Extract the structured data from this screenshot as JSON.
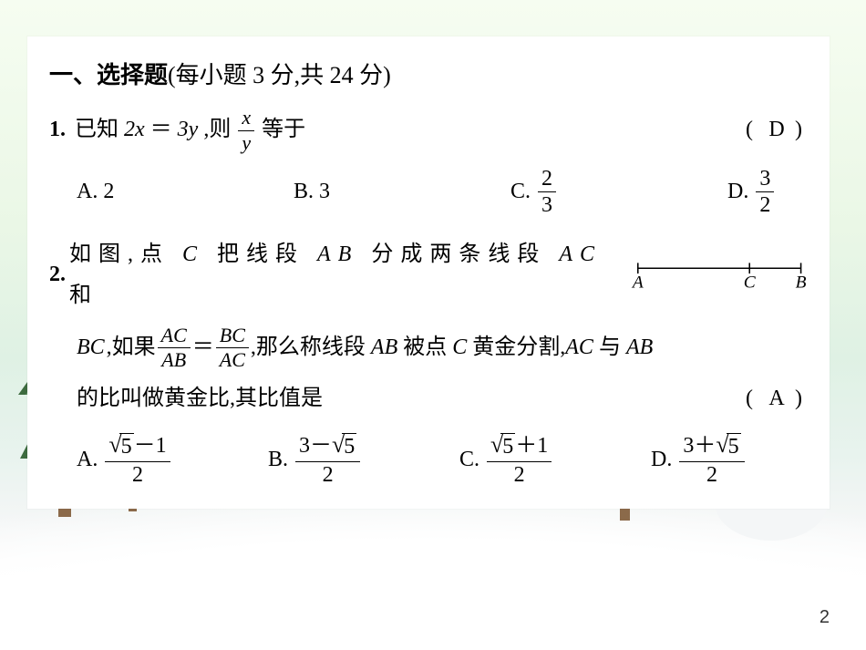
{
  "page": {
    "number": "2",
    "bg": {
      "sky_top": "#f6fdf1",
      "sky_mid": "#e2f3e6",
      "ground": "#ffffff"
    }
  },
  "trees": {
    "tree_green": "#3d6b3f",
    "tree_light": "#72a377",
    "tree_brown": "#8b6a4a",
    "snow": "#ffffff",
    "star": "#e0a64b"
  },
  "snowman": {
    "body": "#fafafa",
    "shadow": "#e7eef1",
    "scarf": "#d98b74",
    "nose": "#e0934a",
    "button": "#96785e",
    "stick": "#9f8060"
  },
  "heading": {
    "label": "一、选择题",
    "paren": "(每小题 3 分,共 24 分)"
  },
  "q1": {
    "num": "1.",
    "pre": "已知 ",
    "expr_lhs": "2x",
    "expr_eq": "＝",
    "expr_rhs": "3y",
    "post1": ",则",
    "frac_num": "x",
    "frac_den": "y",
    "post2": "等于",
    "answer": "D",
    "opts": {
      "A": {
        "label": "A.",
        "val": "2"
      },
      "B": {
        "label": "B.",
        "val": "3"
      },
      "C": {
        "label": "C.",
        "num": "2",
        "den": "3"
      },
      "D": {
        "label": "D.",
        "num": "3",
        "den": "2"
      }
    }
  },
  "q2": {
    "num": "2.",
    "line1_text": "如图,点 C 把线段 AB 分成两条线段 AC 和",
    "diagram": {
      "A": "A",
      "C": "C",
      "B": "B"
    },
    "line2_pre": "BC,如果",
    "frac1": {
      "num": "AC",
      "den": "AB"
    },
    "eq": "＝",
    "frac2": {
      "num": "BC",
      "den": "AC"
    },
    "line2_post": ",那么称线段 AB 被点 C 黄金分割,AC 与 AB",
    "line3_text": "的比叫做黄金比,其比值是",
    "answer": "A",
    "opts": {
      "A": {
        "label": "A.",
        "num_pre": "",
        "sqrt": "5",
        "num_post": "－1",
        "den": "2"
      },
      "B": {
        "label": "B.",
        "num_pre": "3－",
        "sqrt": "5",
        "num_post": "",
        "den": "2"
      },
      "C": {
        "label": "C.",
        "num_pre": "",
        "sqrt": "5",
        "num_post": "＋1",
        "den": "2"
      },
      "D": {
        "label": "D.",
        "num_pre": "3＋",
        "sqrt": "5",
        "num_post": "",
        "den": "2"
      }
    }
  }
}
